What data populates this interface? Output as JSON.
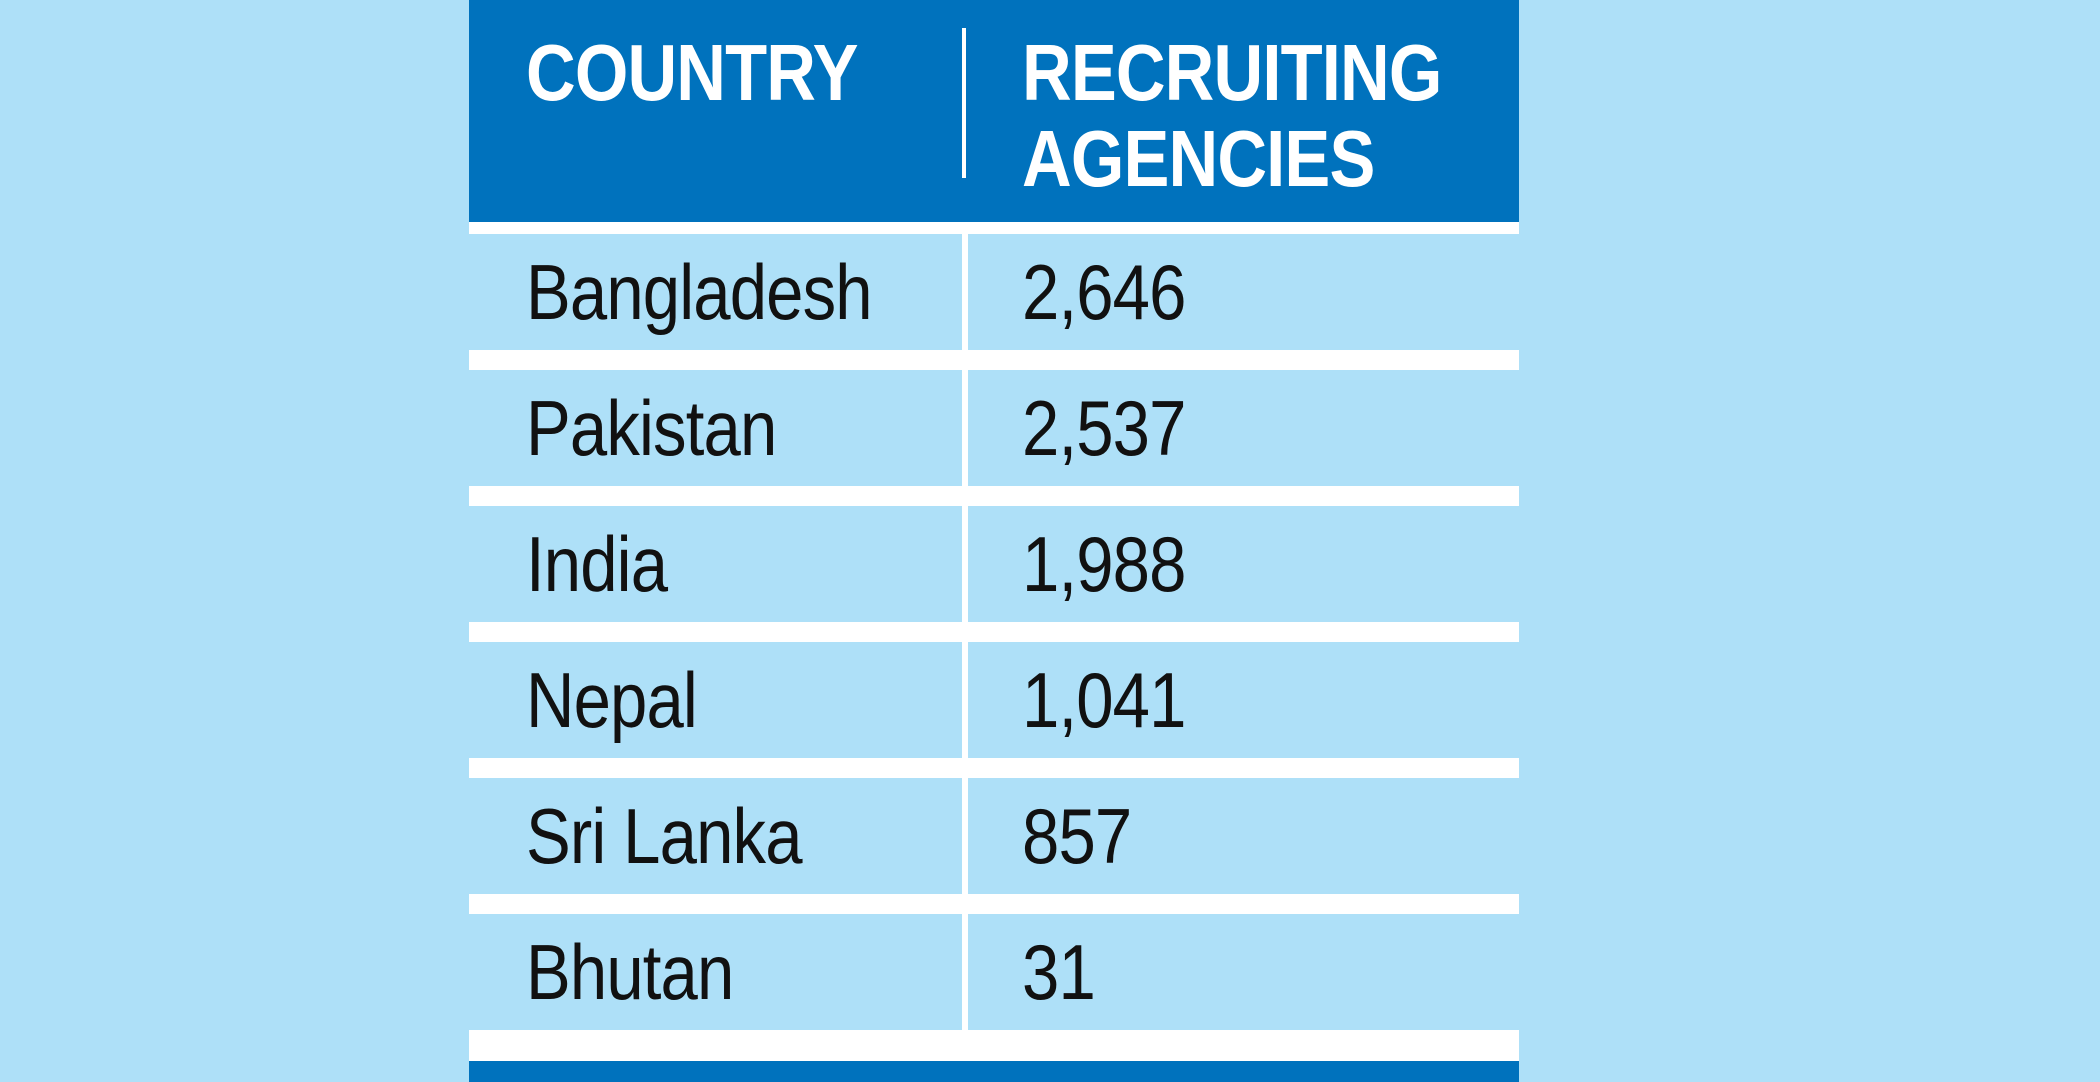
{
  "chart_data": {
    "type": "table",
    "columns": [
      "COUNTRY",
      "RECRUITING\nAGENCIES"
    ],
    "rows": [
      {
        "country": "Bangladesh",
        "agencies": "2,646"
      },
      {
        "country": "Pakistan",
        "agencies": "2,537"
      },
      {
        "country": "India",
        "agencies": "1,988"
      },
      {
        "country": "Nepal",
        "agencies": "1,041"
      },
      {
        "country": "Sri Lanka",
        "agencies": "857"
      },
      {
        "country": "Bhutan",
        "agencies": "31"
      }
    ],
    "values": [
      2646,
      2537,
      1988,
      1041,
      857,
      31
    ]
  },
  "colors": {
    "background": "#aee0f8",
    "header": "#0072bd",
    "row": "#aee0f8",
    "divider": "#ffffff",
    "text": "#111111",
    "header_text": "#ffffff"
  }
}
